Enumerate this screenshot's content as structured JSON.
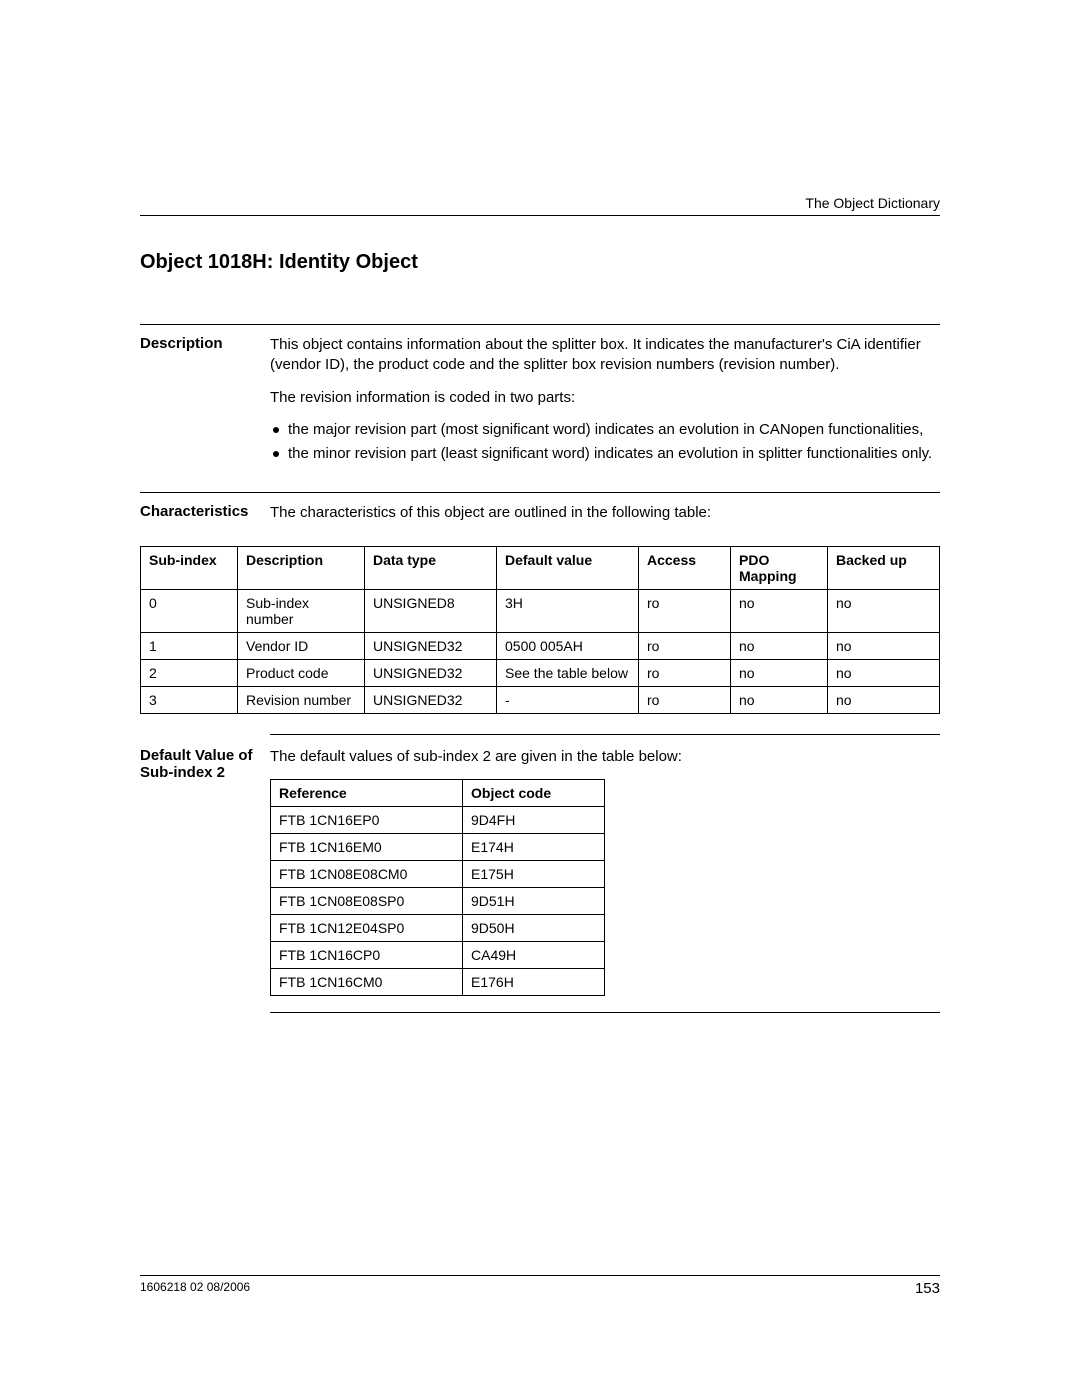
{
  "header": {
    "doc_section": "The Object Dictionary"
  },
  "title": "Object 1018H: Identity Object",
  "description": {
    "label": "Description",
    "para1": "This object contains information about the splitter box. It indicates the manufacturer's CiA identifier (vendor ID), the product code and the splitter box revision numbers (revision number).",
    "para2": "The revision information is coded in two parts:",
    "bullets": [
      "the major revision part (most significant word) indicates an evolution in CANopen functionalities,",
      "the minor revision part (least significant word) indicates an evolution in splitter functionalities only."
    ]
  },
  "characteristics": {
    "label": "Characteristics",
    "intro": "The characteristics of this object are outlined in the following table:",
    "columns": [
      "Sub-index",
      "Description",
      "Data type",
      "Default value",
      "Access",
      "PDO Mapping",
      "Backed up"
    ],
    "col_widths": [
      "80px",
      "110px",
      "115px",
      "125px",
      "75px",
      "80px",
      "95px"
    ],
    "rows": [
      [
        "0",
        "Sub-index number",
        "UNSIGNED8",
        "3H",
        "ro",
        "no",
        "no"
      ],
      [
        "1",
        "Vendor ID",
        "UNSIGNED32",
        "0500 005AH",
        "ro",
        "no",
        "no"
      ],
      [
        "2",
        "Product code",
        "UNSIGNED32",
        "See the table below",
        "ro",
        "no",
        "no"
      ],
      [
        "3",
        "Revision number",
        "UNSIGNED32",
        "-",
        "ro",
        "no",
        "no"
      ]
    ]
  },
  "defaults": {
    "label": "Default Value of Sub-index 2",
    "intro": "The default values of sub-index 2 are given in the table below:",
    "columns": [
      "Reference",
      "Object code"
    ],
    "col_widths": [
      "175px",
      "125px"
    ],
    "rows": [
      [
        "FTB 1CN16EP0",
        "9D4FH"
      ],
      [
        "FTB 1CN16EM0",
        "E174H"
      ],
      [
        "FTB 1CN08E08CM0",
        "E175H"
      ],
      [
        "FTB 1CN08E08SP0",
        "9D51H"
      ],
      [
        "FTB 1CN12E04SP0",
        "9D50H"
      ],
      [
        "FTB 1CN16CP0",
        "CA49H"
      ],
      [
        "FTB 1CN16CM0",
        "E176H"
      ]
    ]
  },
  "footer": {
    "doc_ref": "1606218 02 08/2006",
    "page": "153"
  }
}
